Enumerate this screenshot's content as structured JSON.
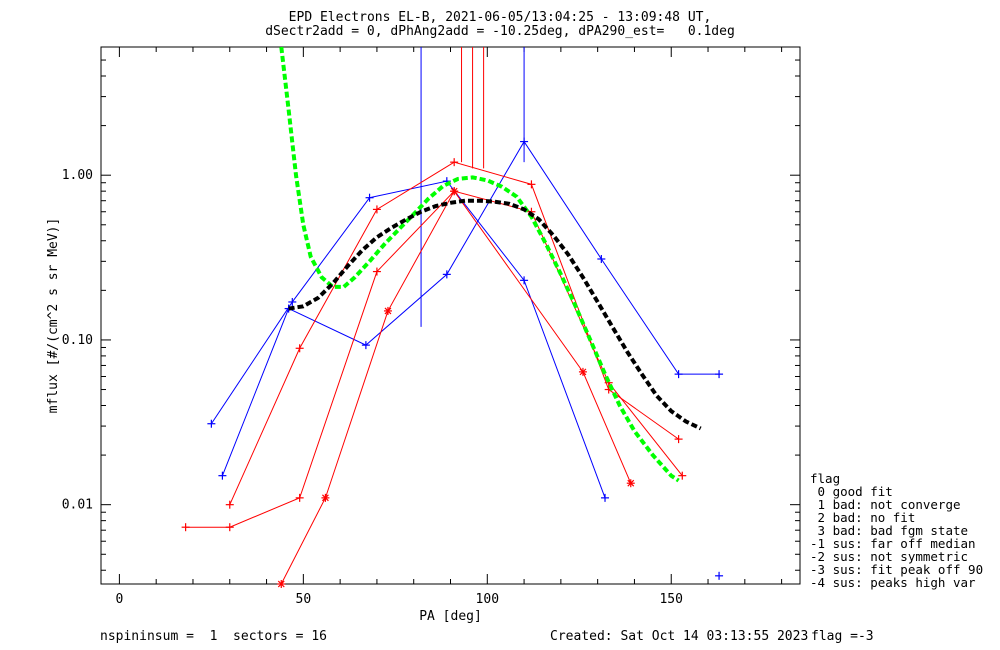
{
  "header": {
    "title_line1": "EPD Electrons EL-B, 2021-06-05/13:04:25 - 13:09:48 UT,",
    "title_line2": "dSectr2add = 0, dPhAng2add = -10.25deg, dPA290_est=   0.1deg"
  },
  "footer": {
    "left": "nspininsum =  1  sectors = 16",
    "created": "Created: Sat Oct 14 03:13:55 2023",
    "flag": "flag =-3"
  },
  "legend": {
    "title": "flag",
    "items": [
      " 0 good fit",
      " 1 bad: not converge",
      " 2 bad: no fit",
      " 3 bad: bad fgm state",
      "-1 sus: far off median",
      "-2 sus: not symmetric",
      "-3 sus: fit peak off 90",
      "-4 sus: peaks high var"
    ]
  },
  "chart_data": {
    "type": "line",
    "title": "EPD Electrons EL-B, 2021-06-05/13:04:25 - 13:09:48 UT,",
    "xlabel": "PA [deg]",
    "ylabel": "mflux [#/(cm^2 s sr MeV)]",
    "xlim": [
      -5,
      185
    ],
    "ylim_log": [
      0.0033,
      6.0
    ],
    "y_scale": "log",
    "x_ticks": [
      0,
      50,
      100,
      150
    ],
    "x_tick_labels": [
      "0",
      "50",
      "100",
      "150"
    ],
    "y_ticks": [
      0.01,
      0.1,
      1.0
    ],
    "y_tick_labels": [
      "0.01",
      "0.10",
      "1.00"
    ],
    "colors": {
      "blue": "#0000ff",
      "red": "#ff0000",
      "green": "#00ff00",
      "black": "#000000"
    },
    "series": [
      {
        "color": "#0000ff",
        "marker": "+",
        "points": [
          [
            25,
            0.031
          ],
          [
            47,
            0.17
          ],
          [
            68,
            0.73
          ],
          [
            89,
            0.92
          ],
          [
            110,
            0.23
          ],
          [
            132,
            0.011
          ]
        ]
      },
      {
        "color": "#0000ff",
        "marker": "+",
        "points": [
          [
            28,
            0.015
          ],
          [
            46,
            0.155
          ],
          [
            67,
            0.093
          ],
          [
            89,
            0.25
          ],
          [
            110,
            1.6
          ],
          [
            131,
            0.31
          ],
          [
            152,
            0.062
          ],
          [
            163,
            0.062
          ]
        ]
      },
      {
        "color": "#0000ff",
        "marker": "+",
        "points": [
          [
            163,
            0.0037
          ]
        ]
      },
      {
        "color": "#ff0000",
        "marker": "+",
        "points": [
          [
            18,
            0.0073
          ],
          [
            30,
            0.0073
          ],
          [
            49,
            0.011
          ],
          [
            70,
            0.26
          ],
          [
            91,
            0.8
          ],
          [
            112,
            0.6
          ],
          [
            133,
            0.055
          ],
          [
            153,
            0.015
          ]
        ]
      },
      {
        "color": "#ff0000",
        "marker": "+",
        "points": [
          [
            30,
            0.01
          ],
          [
            49,
            0.089
          ],
          [
            70,
            0.62
          ],
          [
            91,
            1.2
          ],
          [
            112,
            0.88
          ],
          [
            133,
            0.05
          ],
          [
            152,
            0.025
          ]
        ]
      },
      {
        "color": "#ff0000",
        "marker": "*",
        "points": [
          [
            44,
            0.0033
          ],
          [
            56,
            0.011
          ],
          [
            73,
            0.15
          ],
          [
            91,
            0.8
          ],
          [
            126,
            0.064
          ],
          [
            139,
            0.0135
          ]
        ]
      }
    ],
    "vertical_lines": [
      {
        "color": "#0000ff",
        "x": 82,
        "y_from": 0.12
      },
      {
        "color": "#0000ff",
        "x": 110,
        "y_from": 1.2
      },
      {
        "color": "#ff0000",
        "x": 93,
        "y_from": 1.2
      },
      {
        "color": "#ff0000",
        "x": 96,
        "y_from": 1.1
      },
      {
        "color": "#ff0000",
        "x": 99,
        "y_from": 1.1
      }
    ],
    "fit_curves": [
      {
        "name": "",
        "color": "#00ff00",
        "style": "dashed",
        "points": [
          [
            44,
            6.0
          ],
          [
            46,
            2.5
          ],
          [
            48,
            1.0
          ],
          [
            50,
            0.5
          ],
          [
            52,
            0.32
          ],
          [
            55,
            0.24
          ],
          [
            58,
            0.21
          ],
          [
            61,
            0.21
          ],
          [
            64,
            0.24
          ],
          [
            68,
            0.3
          ],
          [
            72,
            0.38
          ],
          [
            76,
            0.47
          ],
          [
            80,
            0.58
          ],
          [
            84,
            0.72
          ],
          [
            88,
            0.86
          ],
          [
            92,
            0.95
          ],
          [
            96,
            0.97
          ],
          [
            100,
            0.93
          ],
          [
            104,
            0.85
          ],
          [
            108,
            0.74
          ],
          [
            112,
            0.56
          ],
          [
            116,
            0.38
          ],
          [
            120,
            0.25
          ],
          [
            124,
            0.16
          ],
          [
            128,
            0.1
          ],
          [
            132,
            0.062
          ],
          [
            136,
            0.04
          ],
          [
            140,
            0.028
          ],
          [
            145,
            0.02
          ],
          [
            150,
            0.015
          ],
          [
            152,
            0.014
          ]
        ]
      },
      {
        "name": "",
        "color": "#000000",
        "style": "dashed",
        "points": [
          [
            46,
            0.155
          ],
          [
            50,
            0.16
          ],
          [
            54,
            0.18
          ],
          [
            58,
            0.22
          ],
          [
            62,
            0.28
          ],
          [
            66,
            0.35
          ],
          [
            70,
            0.42
          ],
          [
            74,
            0.48
          ],
          [
            78,
            0.54
          ],
          [
            82,
            0.6
          ],
          [
            86,
            0.65
          ],
          [
            90,
            0.68
          ],
          [
            94,
            0.7
          ],
          [
            98,
            0.7
          ],
          [
            102,
            0.69
          ],
          [
            106,
            0.67
          ],
          [
            110,
            0.62
          ],
          [
            114,
            0.54
          ],
          [
            118,
            0.43
          ],
          [
            122,
            0.33
          ],
          [
            126,
            0.24
          ],
          [
            130,
            0.17
          ],
          [
            134,
            0.12
          ],
          [
            138,
            0.085
          ],
          [
            142,
            0.062
          ],
          [
            146,
            0.046
          ],
          [
            150,
            0.037
          ],
          [
            154,
            0.032
          ],
          [
            158,
            0.029
          ]
        ]
      }
    ],
    "grid": false,
    "legend_position": "right"
  }
}
